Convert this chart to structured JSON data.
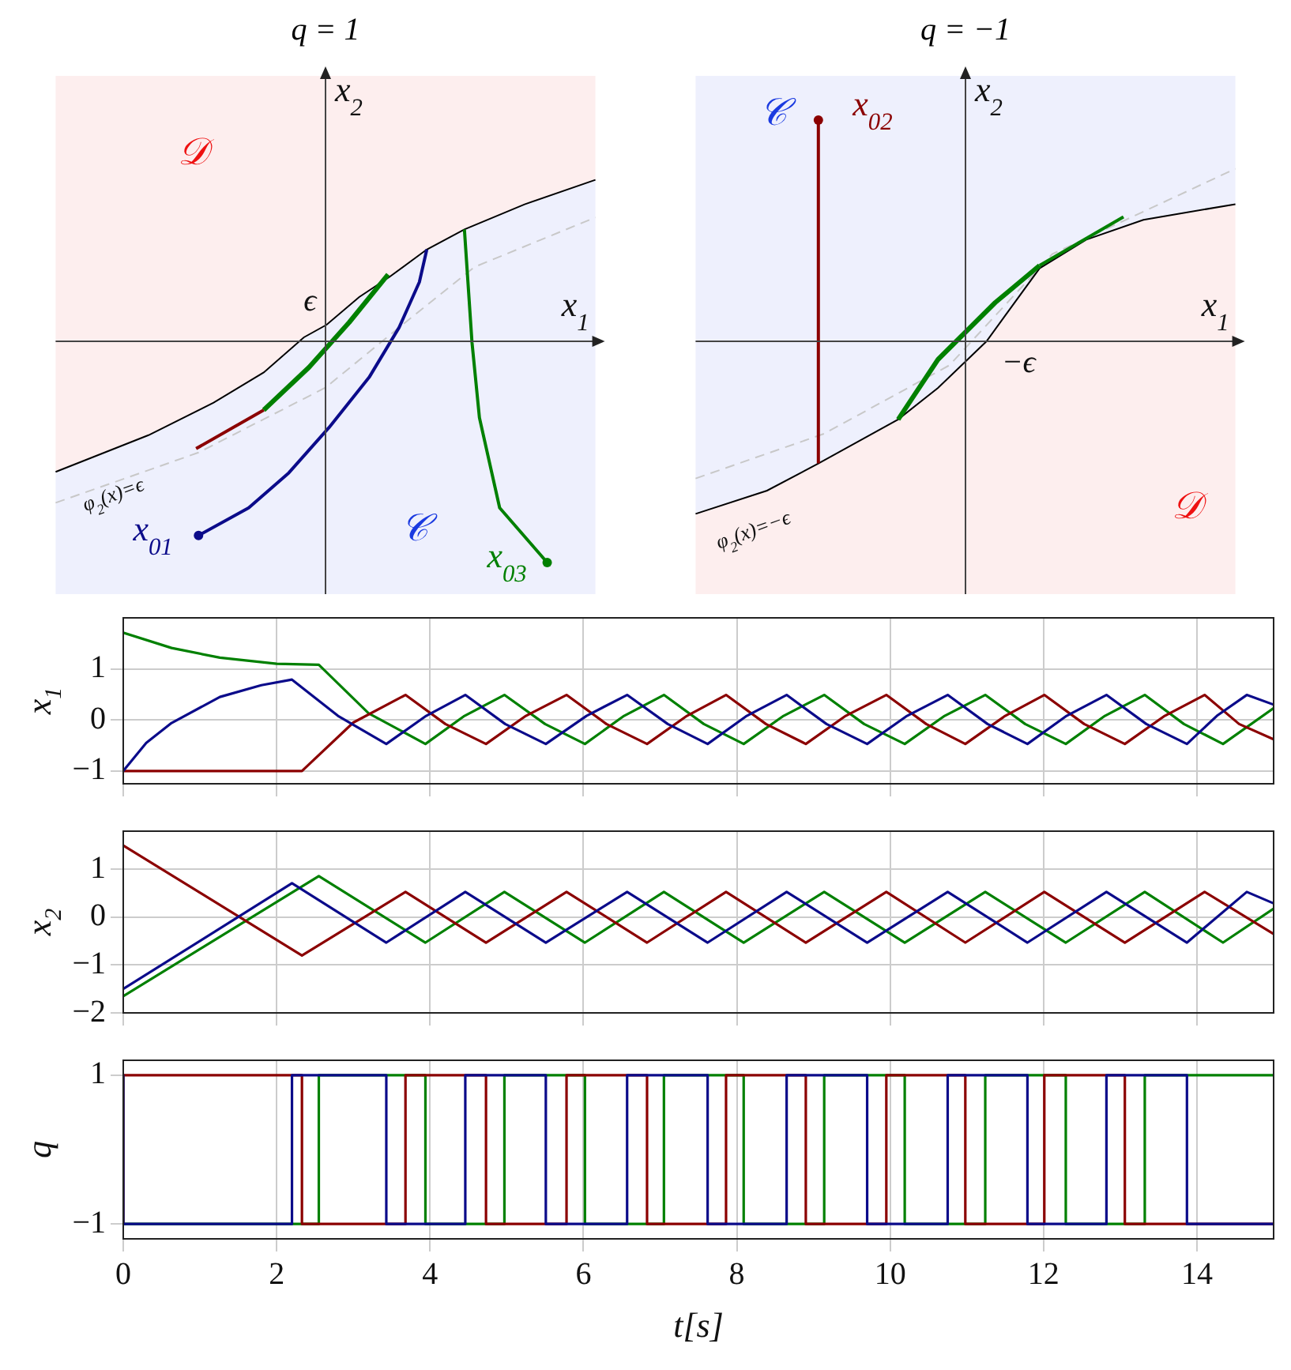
{
  "chart_data": [
    {
      "type": "other",
      "title": "q = 1",
      "xlabel": "x$_{1}$",
      "ylabel": "x$_{2}$",
      "annotations": [
        "𝒟",
        "𝒞",
        "ϵ",
        "x$_{01}$",
        "x$_{03}$",
        "φ$_{2}$(x)=ϵ"
      ]
    },
    {
      "type": "other",
      "title": "q = −1",
      "xlabel": "x$_{1}$",
      "ylabel": "x$_{2}$",
      "annotations": [
        "x$_{02}$",
        "𝒞",
        "𝒟",
        "−ϵ",
        "φ$_{2}$(x)=−ϵ"
      ]
    },
    {
      "type": "line",
      "ylabel": "x$_{1}$",
      "xlim": [
        0,
        15
      ],
      "xticks": [
        0,
        2,
        4,
        6,
        8,
        10,
        12,
        14
      ],
      "ylim": [
        -1.25,
        2
      ],
      "yticks": [
        -1,
        0,
        1
      ],
      "grid": true,
      "tick_labels": "y",
      "marker": "none",
      "series": [
        {
          "color": "#0b0b8a",
          "x": [
            0,
            0.3,
            0.63,
            1.26,
            1.8,
            2.2,
            2.8,
            3.43,
            3.95,
            4.46,
            4.98,
            5.51,
            6.04,
            6.57,
            7.1,
            7.62,
            8.13,
            8.65,
            9.17,
            9.7,
            10.22,
            10.75,
            11.27,
            11.79,
            12.3,
            12.82,
            13.34,
            13.87,
            14.26,
            14.65,
            15
          ],
          "values": [
            -1,
            -0.45,
            -0.06,
            0.45,
            0.68,
            0.79,
            0.08,
            -0.47,
            0.08,
            0.49,
            -0.08,
            -0.47,
            0.08,
            0.49,
            -0.08,
            -0.47,
            0.08,
            0.49,
            -0.08,
            -0.47,
            0.08,
            0.49,
            -0.08,
            -0.47,
            0.08,
            0.49,
            -0.08,
            -0.47,
            0.08,
            0.49,
            0.3
          ]
        },
        {
          "color": "#8b0000",
          "x": [
            0,
            2.33,
            3.0,
            3.68,
            4.2,
            4.73,
            5.25,
            5.78,
            6.3,
            6.83,
            7.35,
            7.86,
            8.38,
            8.9,
            9.42,
            9.95,
            10.47,
            10.98,
            11.5,
            12.01,
            12.53,
            13.06,
            13.58,
            14.1,
            14.55,
            15
          ],
          "values": [
            -1,
            -1,
            -0.05,
            0.49,
            -0.08,
            -0.47,
            0.08,
            0.49,
            -0.08,
            -0.47,
            0.08,
            0.49,
            -0.08,
            -0.47,
            0.08,
            0.49,
            -0.08,
            -0.47,
            0.08,
            0.49,
            -0.08,
            -0.47,
            0.08,
            0.49,
            -0.08,
            -0.38
          ]
        },
        {
          "color": "#008000",
          "x": [
            0,
            0.63,
            1.26,
            2.0,
            2.55,
            3.2,
            3.94,
            4.45,
            4.97,
            5.5,
            6.02,
            6.53,
            7.05,
            7.57,
            8.09,
            8.61,
            9.14,
            9.66,
            10.19,
            10.71,
            11.24,
            11.76,
            12.29,
            12.8,
            13.32,
            13.83,
            14.34,
            15
          ],
          "values": [
            1.71,
            1.41,
            1.22,
            1.1,
            1.08,
            0.13,
            -0.47,
            0.08,
            0.49,
            -0.08,
            -0.47,
            0.08,
            0.49,
            -0.08,
            -0.47,
            0.08,
            0.49,
            -0.08,
            -0.47,
            0.08,
            0.49,
            -0.08,
            -0.47,
            0.08,
            0.49,
            -0.08,
            -0.47,
            0.23
          ]
        }
      ]
    },
    {
      "type": "line",
      "ylabel": "x$_{2}$",
      "xlim": [
        0,
        15
      ],
      "xticks": [
        0,
        2,
        4,
        6,
        8,
        10,
        12,
        14
      ],
      "ylim": [
        -2,
        1.8
      ],
      "yticks": [
        -2,
        -1,
        0,
        1
      ],
      "grid": true,
      "tick_labels": "y",
      "marker": "none",
      "series": [
        {
          "color": "#0b0b8a",
          "x": [
            0,
            2.2,
            3.43,
            4.46,
            5.51,
            6.57,
            7.62,
            8.65,
            9.7,
            10.75,
            11.79,
            12.82,
            13.87,
            14.65,
            15
          ],
          "values": [
            -1.5,
            0.71,
            -0.53,
            0.53,
            -0.53,
            0.53,
            -0.53,
            0.53,
            -0.53,
            0.53,
            -0.53,
            0.53,
            -0.53,
            0.53,
            0.29
          ]
        },
        {
          "color": "#8b0000",
          "x": [
            0,
            2.33,
            3.68,
            4.73,
            5.78,
            6.83,
            7.86,
            8.9,
            9.95,
            10.98,
            12.01,
            13.06,
            14.1,
            15
          ],
          "values": [
            1.5,
            -0.8,
            0.53,
            -0.53,
            0.53,
            -0.53,
            0.53,
            -0.53,
            0.53,
            -0.53,
            0.53,
            -0.53,
            0.53,
            -0.35
          ]
        },
        {
          "color": "#008000",
          "x": [
            0,
            2.55,
            3.94,
            4.97,
            6.02,
            7.05,
            8.09,
            9.14,
            10.19,
            11.24,
            12.29,
            13.32,
            14.34,
            15
          ],
          "values": [
            -1.65,
            0.86,
            -0.53,
            0.53,
            -0.53,
            0.53,
            -0.53,
            0.53,
            -0.53,
            0.53,
            -0.53,
            0.53,
            -0.53,
            0.18
          ]
        }
      ]
    },
    {
      "type": "step",
      "ylabel": "q",
      "xlabel": "t[s]",
      "xlim": [
        0,
        15
      ],
      "xticks": [
        0,
        2,
        4,
        6,
        8,
        10,
        12,
        14
      ],
      "ylim": [
        -1.2,
        1.2
      ],
      "yticks": [
        -1,
        1
      ],
      "grid": true,
      "marker": "none",
      "series": [
        {
          "color": "#0b0b8a",
          "x": [
            0,
            2.2,
            3.43,
            4.46,
            5.51,
            6.57,
            7.62,
            8.65,
            9.7,
            10.75,
            11.79,
            12.82,
            13.87,
            14.65,
            15
          ],
          "values": [
            1,
            -1,
            1,
            -1,
            1,
            -1,
            1,
            -1,
            1,
            -1,
            1,
            -1,
            1,
            -1,
            -1
          ]
        },
        {
          "color": "#8b0000",
          "x": [
            0,
            2.33,
            3.68,
            4.73,
            5.78,
            6.83,
            7.86,
            8.9,
            9.95,
            10.98,
            12.01,
            13.06,
            14.1,
            15
          ],
          "values": [
            -1,
            1,
            -1,
            1,
            -1,
            1,
            -1,
            1,
            -1,
            1,
            -1,
            1,
            -1,
            -1
          ]
        },
        {
          "color": "#008000",
          "x": [
            0,
            2.55,
            3.94,
            4.97,
            6.02,
            7.05,
            8.09,
            9.14,
            10.19,
            11.24,
            12.29,
            13.32,
            14.34,
            15
          ],
          "values": [
            1,
            -1,
            1,
            -1,
            1,
            -1,
            1,
            -1,
            1,
            -1,
            1,
            -1,
            1,
            1
          ]
        }
      ]
    }
  ]
}
